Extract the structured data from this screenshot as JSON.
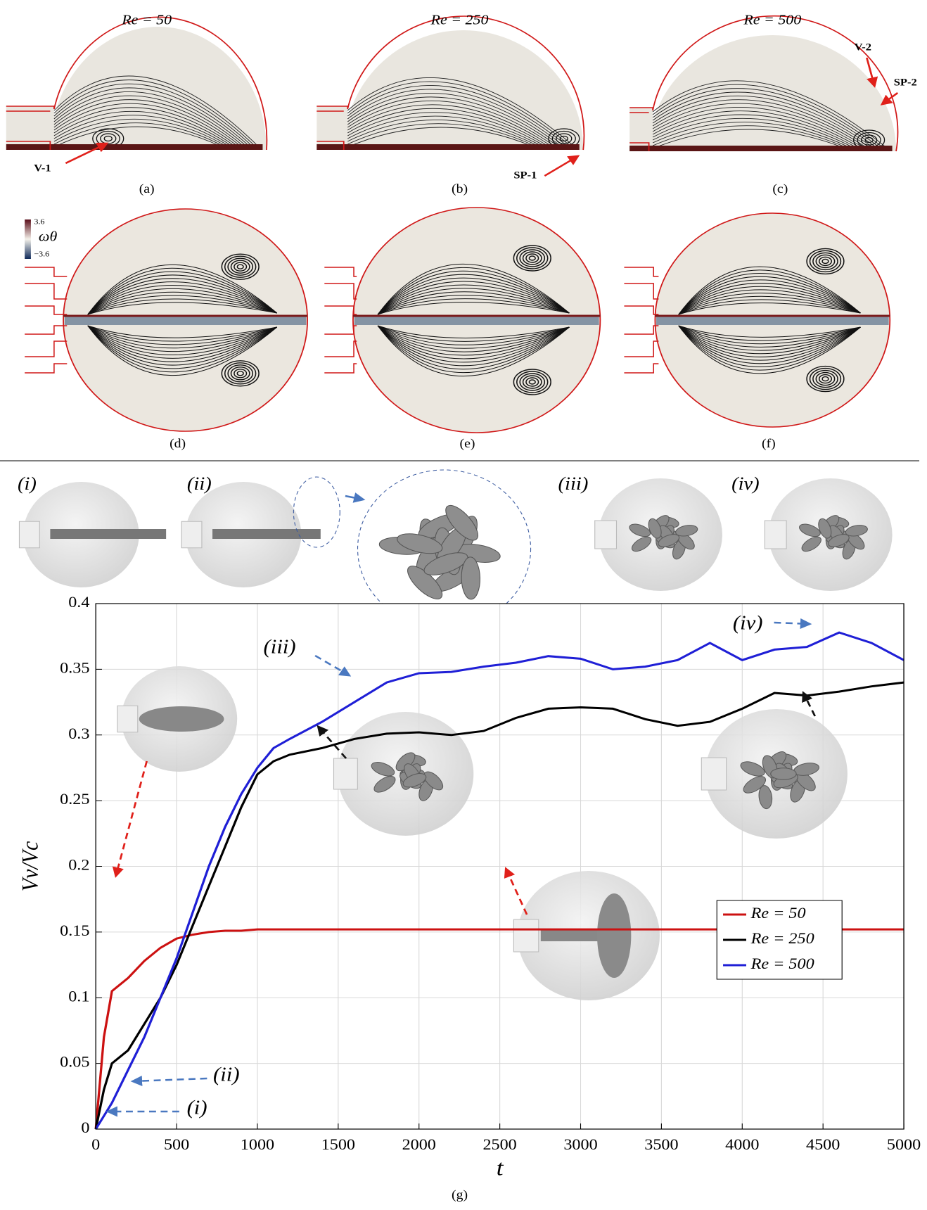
{
  "figure": {
    "re_titles": [
      "Re = 50",
      "Re = 250",
      "Re = 500"
    ],
    "panel_labels": [
      "(a)",
      "(b)",
      "(c)",
      "(d)",
      "(e)",
      "(f)",
      "(g)"
    ],
    "annotations": [
      "V-1",
      "SP-1",
      "V-2",
      "SP-2"
    ],
    "colorbar": {
      "max": "3.6",
      "label": "ωθ",
      "min": "−3.6"
    },
    "inset_labels": [
      "(i)",
      "(ii)",
      "(iii)",
      "(iv)"
    ]
  },
  "chart_data": {
    "type": "line",
    "x_label": "t",
    "y_label": "Vv/Vc",
    "x": [
      0,
      50,
      100,
      200,
      300,
      400,
      500,
      600,
      700,
      800,
      900,
      1000,
      1100,
      1200,
      1400,
      1600,
      1800,
      2000,
      2200,
      2400,
      2600,
      2800,
      3000,
      3200,
      3400,
      3600,
      3800,
      4000,
      4200,
      4400,
      4600,
      4800,
      5000
    ],
    "series": [
      {
        "name": "Re = 50",
        "color": "#cc1111",
        "values": [
          0,
          0.07,
          0.105,
          0.115,
          0.128,
          0.138,
          0.145,
          0.148,
          0.15,
          0.151,
          0.151,
          0.152,
          0.152,
          0.152,
          0.152,
          0.152,
          0.152,
          0.152,
          0.152,
          0.152,
          0.152,
          0.152,
          0.152,
          0.152,
          0.152,
          0.152,
          0.152,
          0.152,
          0.152,
          0.152,
          0.152,
          0.152,
          0.152
        ]
      },
      {
        "name": "Re = 250",
        "color": "#000000",
        "values": [
          0,
          0.03,
          0.05,
          0.06,
          0.08,
          0.1,
          0.125,
          0.155,
          0.185,
          0.215,
          0.245,
          0.27,
          0.28,
          0.285,
          0.29,
          0.297,
          0.301,
          0.302,
          0.3,
          0.303,
          0.313,
          0.32,
          0.321,
          0.32,
          0.312,
          0.307,
          0.31,
          0.32,
          0.332,
          0.33,
          0.333,
          0.337,
          0.34
        ]
      },
      {
        "name": "Re = 500",
        "color": "#1f1fd6",
        "values": [
          0,
          0.01,
          0.02,
          0.045,
          0.07,
          0.1,
          0.13,
          0.165,
          0.2,
          0.23,
          0.255,
          0.275,
          0.29,
          0.297,
          0.31,
          0.325,
          0.34,
          0.347,
          0.348,
          0.352,
          0.355,
          0.36,
          0.358,
          0.35,
          0.352,
          0.357,
          0.37,
          0.357,
          0.365,
          0.367,
          0.378,
          0.37,
          0.357
        ]
      }
    ],
    "xlim": [
      0,
      5000
    ],
    "ylim": [
      0,
      0.4
    ],
    "xticks": [
      0,
      500,
      1000,
      1500,
      2000,
      2500,
      3000,
      3500,
      4000,
      4500,
      5000
    ],
    "yticks": [
      0,
      0.05,
      0.1,
      0.15,
      0.2,
      0.25,
      0.3,
      0.35,
      0.4
    ],
    "grid": true,
    "legend": "lower right",
    "annotations": [
      "(i)",
      "(ii)",
      "(iii)",
      "(iv)"
    ]
  }
}
